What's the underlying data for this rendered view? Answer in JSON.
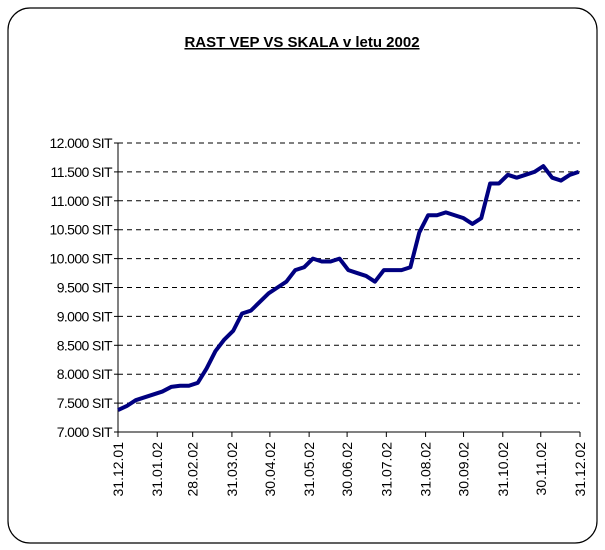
{
  "chart_data": {
    "type": "line",
    "title": "RAST VEP VS SKALA v letu 2002",
    "x": [
      "31.12.01",
      "07.01.02",
      "14.01.02",
      "21.01.02",
      "28.01.02",
      "04.02.02",
      "11.02.02",
      "18.02.02",
      "25.02.02",
      "04.03.02",
      "11.03.02",
      "18.03.02",
      "25.03.02",
      "01.04.02",
      "08.04.02",
      "15.04.02",
      "22.04.02",
      "29.04.02",
      "06.05.02",
      "13.05.02",
      "20.05.02",
      "27.05.02",
      "03.06.02",
      "10.06.02",
      "17.06.02",
      "24.06.02",
      "01.07.02",
      "08.07.02",
      "15.07.02",
      "22.07.02",
      "29.07.02",
      "05.08.02",
      "12.08.02",
      "19.08.02",
      "26.08.02",
      "02.09.02",
      "09.09.02",
      "16.09.02",
      "23.09.02",
      "30.09.02",
      "07.10.02",
      "14.10.02",
      "21.10.02",
      "28.10.02",
      "04.11.02",
      "11.11.02",
      "18.11.02",
      "25.11.02",
      "02.12.02",
      "09.12.02",
      "16.12.02",
      "23.12.02",
      "30.12.02"
    ],
    "series": [
      {
        "color": "#000080",
        "values": [
          7380,
          7450,
          7550,
          7600,
          7650,
          7700,
          7780,
          7800,
          7800,
          7850,
          8100,
          8400,
          8600,
          8750,
          9050,
          9100,
          9250,
          9400,
          9500,
          9600,
          9800,
          9850,
          10000,
          9950,
          9950,
          10000,
          9800,
          9750,
          9700,
          9600,
          9800,
          9800,
          9800,
          9850,
          10450,
          10750,
          10750,
          10800,
          10750,
          10700,
          10600,
          10700,
          11300,
          11300,
          11450,
          11400,
          11450,
          11500,
          11600,
          11400,
          11350,
          11450,
          11500
        ]
      }
    ],
    "xlim": [
      "31.12.01",
      "31.12.02"
    ],
    "xticks": [
      "31.12.01",
      "31.01.02",
      "28.02.02",
      "31.03.02",
      "30.04.02",
      "31.05.02",
      "30.06.02",
      "31.07.02",
      "31.08.02",
      "30.09.02",
      "31.10.02",
      "30.11.02",
      "31.12.02"
    ],
    "ylim": [
      7000,
      12000
    ],
    "yticks": [
      {
        "value": 7000,
        "label": "7.000 SIT"
      },
      {
        "value": 7500,
        "label": "7.500 SIT"
      },
      {
        "value": 8000,
        "label": "8.000 SIT"
      },
      {
        "value": 8500,
        "label": "8.500 SIT"
      },
      {
        "value": 9000,
        "label": "9.000 SIT"
      },
      {
        "value": 9500,
        "label": "9.500 SIT"
      },
      {
        "value": 10000,
        "label": "10.000 SIT"
      },
      {
        "value": 10500,
        "label": "10.500 SIT"
      },
      {
        "value": 11000,
        "label": "11.000 SIT"
      },
      {
        "value": 11500,
        "label": "11.500 SIT"
      },
      {
        "value": 12000,
        "label": "12.000 SIT"
      }
    ],
    "grid": true
  }
}
